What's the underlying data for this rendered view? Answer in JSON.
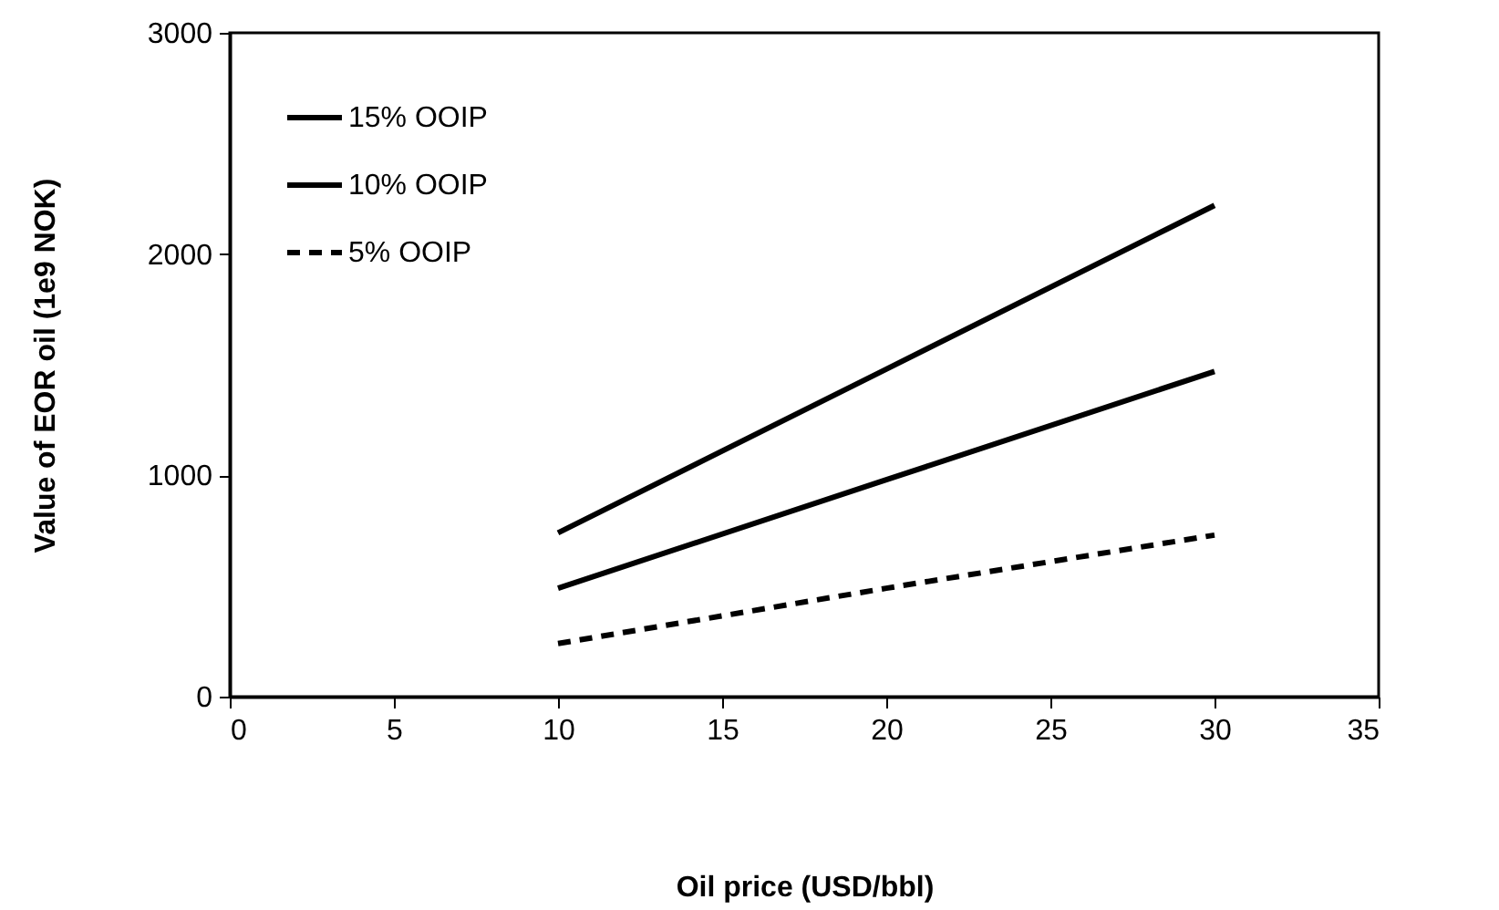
{
  "chart_data": {
    "type": "line",
    "xlabel": "Oil price (USD/bbl)",
    "ylabel": "Value of EOR oil (1e9 NOK)",
    "x": [
      10,
      20,
      30
    ],
    "series": [
      {
        "name": "15% OOIP",
        "color": "#000000",
        "line_style": "solid",
        "values": [
          740,
          1480,
          2220
        ]
      },
      {
        "name": "10% OOIP",
        "color": "#000000",
        "line_style": "solid",
        "values": [
          490,
          980,
          1470
        ]
      },
      {
        "name": "5% OOIP",
        "color": "#000000",
        "line_style": "dashed",
        "values": [
          240,
          490,
          730
        ]
      }
    ],
    "xlim": [
      0,
      35
    ],
    "xticks": [
      0,
      5,
      10,
      15,
      20,
      25,
      30,
      35
    ],
    "ylim": [
      0,
      3000
    ],
    "yticks": [
      0,
      1000,
      2000,
      3000
    ],
    "grid": false,
    "legend": "top left",
    "marker": "none"
  }
}
